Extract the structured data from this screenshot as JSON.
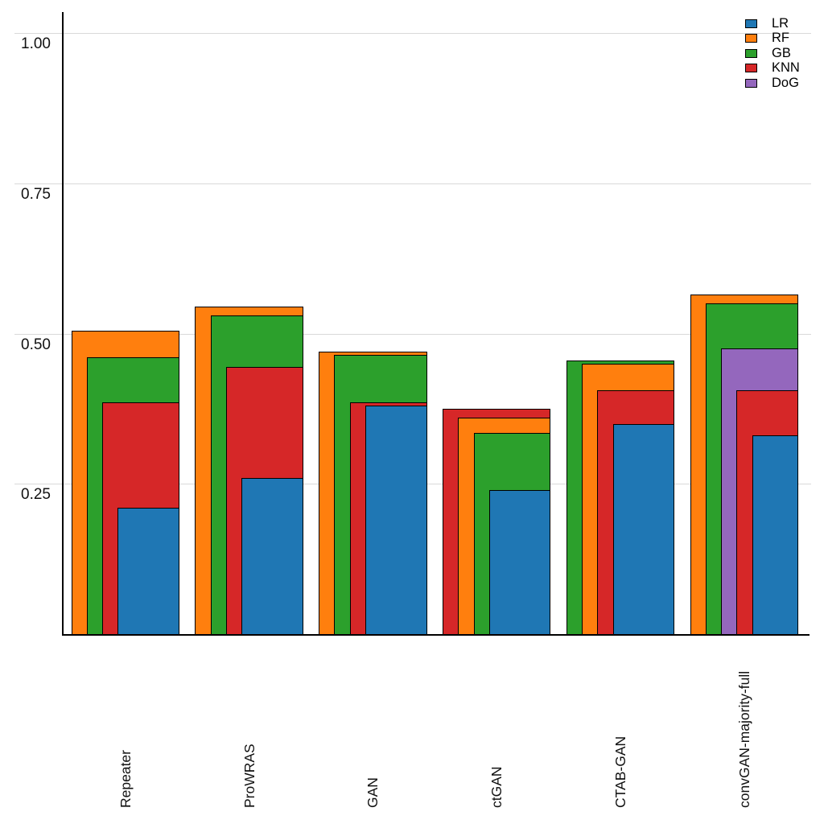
{
  "chart_data": {
    "type": "bar",
    "variant": "overlapping-nested-bars",
    "title": "",
    "xlabel": "",
    "ylabel": "",
    "categories": [
      "Repeater",
      "ProWRAS",
      "GAN",
      "ctGAN",
      "CTAB-GAN",
      "convGAN-majority-full"
    ],
    "series": [
      {
        "name": "LR",
        "color": "#1f77b4",
        "values": [
          0.21,
          0.26,
          0.38,
          0.24,
          0.35,
          0.33
        ]
      },
      {
        "name": "RF",
        "color": "#ff7f0e",
        "values": [
          0.505,
          0.545,
          0.47,
          0.36,
          0.45,
          0.565
        ]
      },
      {
        "name": "GB",
        "color": "#2ca02c",
        "values": [
          0.46,
          0.53,
          0.465,
          0.335,
          0.455,
          0.55
        ]
      },
      {
        "name": "KNN",
        "color": "#d62728",
        "values": [
          0.385,
          0.445,
          0.385,
          0.375,
          0.405,
          0.405
        ]
      },
      {
        "name": "DoG",
        "color": "#9467bd",
        "values": [
          null,
          null,
          null,
          null,
          null,
          0.475
        ]
      }
    ],
    "y_ticks": [
      {
        "label": "0.25",
        "value": 0.25
      },
      {
        "label": "0.50",
        "value": 0.5
      },
      {
        "label": "0.75",
        "value": 0.75
      },
      {
        "label": "1.00",
        "value": 1.0
      }
    ],
    "ylim": [
      0,
      1.035
    ],
    "grid": "horizontal",
    "legend_position": "top-right",
    "colors": {
      "gridline": "#d9d9d9",
      "axis": "#000000",
      "background": "#ffffff"
    }
  }
}
